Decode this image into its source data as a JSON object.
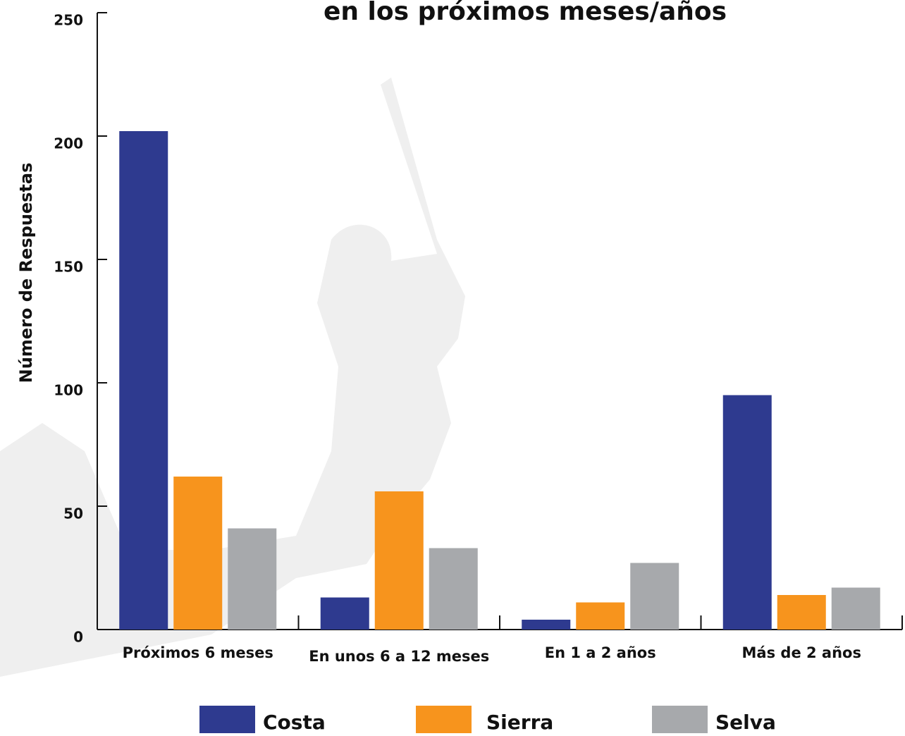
{
  "chart_data": {
    "type": "bar",
    "title": "en los próximos meses/años",
    "y_label": "Número de Respuestas",
    "categories": [
      "Próximos 6 meses",
      "En unos 6 a 12 meses",
      "En 1 a 2 años",
      "Más de 2 años"
    ],
    "series": [
      {
        "name": "Costa",
        "color": "#2e3a8f",
        "values": [
          202,
          13,
          4,
          95
        ]
      },
      {
        "name": "Sierra",
        "color": "#f7941d",
        "values": [
          62,
          56,
          11,
          14
        ]
      },
      {
        "name": "Selva",
        "color": "#a7a9ac",
        "values": [
          41,
          33,
          27,
          17
        ]
      }
    ],
    "ylim": [
      0,
      250
    ],
    "yticks": [
      0,
      50,
      100,
      150,
      200,
      250
    ],
    "grid": false
  }
}
